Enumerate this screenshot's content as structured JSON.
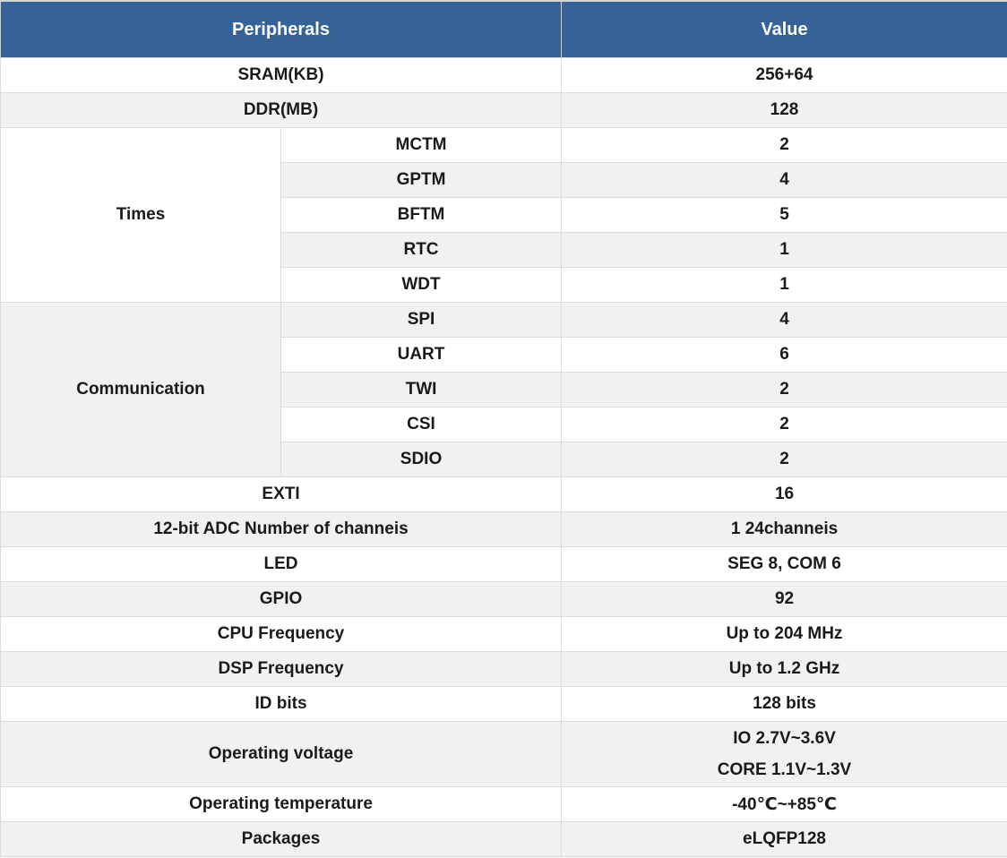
{
  "table": {
    "header": {
      "peripherals": "Peripherals",
      "value": "Value"
    },
    "rows": [
      {
        "type": "simple",
        "label": "SRAM(KB)",
        "value": "256+64"
      },
      {
        "type": "simple",
        "label": "DDR(MB)",
        "value": "128"
      },
      {
        "type": "group",
        "label": "Times",
        "items": [
          {
            "label": "MCTM",
            "value": "2"
          },
          {
            "label": "GPTM",
            "value": "4"
          },
          {
            "label": "BFTM",
            "value": "5"
          },
          {
            "label": "RTC",
            "value": "1"
          },
          {
            "label": "WDT",
            "value": "1"
          }
        ]
      },
      {
        "type": "group",
        "label": "Communication",
        "items": [
          {
            "label": "SPI",
            "value": "4"
          },
          {
            "label": "UART",
            "value": "6"
          },
          {
            "label": "TWI",
            "value": "2"
          },
          {
            "label": "CSI",
            "value": "2"
          },
          {
            "label": "SDIO",
            "value": "2"
          }
        ]
      },
      {
        "type": "simple",
        "label": "EXTI",
        "value": "16"
      },
      {
        "type": "simple",
        "label": "12-bit ADC Number of channeis",
        "value": "1 24channeis"
      },
      {
        "type": "simple",
        "label": "LED",
        "value": "SEG 8, COM 6"
      },
      {
        "type": "simple",
        "label": "GPIO",
        "value": "92"
      },
      {
        "type": "simple",
        "label": "CPU Frequency",
        "value": "Up to 204 MHz"
      },
      {
        "type": "simple",
        "label": "DSP Frequency",
        "value": "Up to 1.2 GHz"
      },
      {
        "type": "simple",
        "label": "ID bits",
        "value": "128 bits"
      },
      {
        "type": "simple",
        "label": "Operating voltage",
        "value_lines": [
          "IO 2.7V~3.6V",
          "CORE 1.1V~1.3V"
        ],
        "tall": true
      },
      {
        "type": "simple",
        "label": "Operating temperature",
        "value": "-40℃~+85℃"
      },
      {
        "type": "simple",
        "label": "Packages",
        "value": "eLQFP128"
      }
    ],
    "colors": {
      "header_bg": "#356299",
      "header_text": "#ffffff",
      "stripe_bg": "#f1f1f1",
      "row_bg": "#ffffff",
      "border": "#dcdcdc",
      "text": "#1a1a1a"
    }
  }
}
